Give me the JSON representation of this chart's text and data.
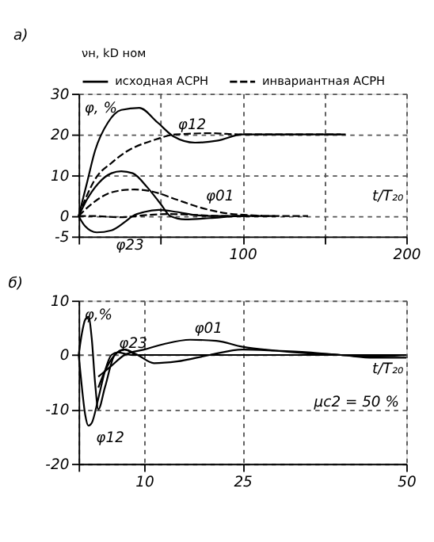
{
  "chart_data": [
    {
      "type": "line",
      "title": "а)",
      "ylabel": "φ, %",
      "xlabel": "t/T₂₀",
      "legend_title": "νн, kD ном",
      "legend": "top",
      "grid": true,
      "xlim": [
        0,
        200
      ],
      "xticks": [
        {
          "value": 0,
          "label": null
        },
        {
          "value": 50,
          "label": null
        },
        100,
        {
          "value": 150,
          "label": null
        },
        200
      ],
      "ylim": [
        -5,
        30
      ],
      "yticks": [
        -5,
        0,
        10,
        20,
        30
      ],
      "series": [
        {
          "name": "исходная АСРН",
          "color": "#000000",
          "line_style": "solid",
          "x": [
            0,
            5,
            10,
            18,
            26,
            37,
            48,
            58,
            71,
            85,
            100,
            120,
            140,
            163
          ],
          "values": [
            0,
            8,
            16,
            23,
            26,
            26.5,
            23,
            19.5,
            18,
            18.5,
            20,
            20,
            20,
            20
          ]
        },
        {
          "name": "инвариантная АСРН",
          "color": "#000000",
          "line_style": "dashed",
          "x": [
            0,
            5,
            10,
            20,
            30,
            45,
            59,
            80,
            100,
            130,
            160
          ],
          "values": [
            0,
            5,
            9,
            13,
            16,
            18.5,
            20,
            20.3,
            20,
            20,
            20
          ]
        },
        {
          "color": "#000000",
          "line_style": "solid",
          "x": [
            0,
            5,
            12,
            20,
            26,
            33,
            42,
            50,
            56,
            65,
            80,
            100,
            120
          ],
          "values": [
            0,
            4,
            8,
            10.5,
            11,
            10.5,
            7,
            3,
            0,
            -0.8,
            -0.5,
            0,
            0
          ]
        },
        {
          "color": "#000000",
          "line_style": "dashed",
          "x": [
            0,
            8,
            18,
            26,
            34,
            45,
            60,
            75,
            90,
            105,
            112
          ],
          "values": [
            0,
            3,
            5.5,
            6.3,
            6.5,
            6,
            4,
            2,
            0.7,
            0.2,
            0.1
          ]
        },
        {
          "color": "#000000",
          "line_style": "solid",
          "x": [
            0,
            4,
            11,
            20,
            28,
            33,
            40,
            49,
            60,
            72,
            85,
            100
          ],
          "values": [
            0,
            -2.5,
            -4,
            -3.5,
            -1.5,
            0,
            1,
            1.5,
            1,
            0.2,
            0,
            0
          ]
        },
        {
          "color": "#000000",
          "line_style": "dashed",
          "x": [
            0,
            10,
            25,
            40,
            55,
            70,
            90,
            110,
            140
          ],
          "values": [
            0,
            0,
            -0.3,
            0.2,
            0.5,
            0.3,
            0,
            0,
            0
          ]
        }
      ],
      "annotations": [
        {
          "text": "φ12",
          "x": 58,
          "y": 19.5
        },
        {
          "text": "φ01",
          "x": 75,
          "y": 2
        },
        {
          "text": "φ23",
          "x": 20,
          "y": -3.5
        }
      ]
    },
    {
      "type": "line",
      "title": "б)",
      "ylabel": "φ,%",
      "xlabel": "t/T₂₀",
      "grid": true,
      "xlim": [
        0,
        50
      ],
      "xticks": [
        {
          "value": 0,
          "label": null
        },
        10,
        25,
        50
      ],
      "ylim": [
        -20,
        10
      ],
      "yticks": [
        -20,
        -10,
        0,
        10
      ],
      "series": [
        {
          "color": "#000000",
          "line_style": "solid",
          "x": [
            0,
            0.5,
            1,
            1.5,
            2,
            3,
            4,
            5,
            6,
            8,
            12,
            20,
            30,
            40,
            50
          ],
          "values": [
            0,
            -6,
            -11,
            -13,
            -12.5,
            -8,
            -3,
            0,
            0.5,
            0,
            0,
            0,
            0,
            0,
            0
          ]
        },
        {
          "color": "#000000",
          "line_style": "solid",
          "x": [
            0,
            0.5,
            1,
            1.5,
            2,
            2.5,
            3,
            4,
            5.5,
            7,
            9,
            12,
            20,
            30,
            50
          ],
          "values": [
            0,
            4,
            6.5,
            7,
            3,
            -5,
            -10,
            -6,
            0,
            1,
            0,
            0,
            0,
            0,
            0
          ]
        },
        {
          "color": "#000000",
          "line_style": "solid",
          "x": [
            3,
            4,
            5,
            7,
            10,
            13,
            17,
            21,
            25,
            30,
            35,
            40,
            45,
            50
          ],
          "values": [
            -4,
            -3,
            -2,
            0,
            1,
            2,
            2.8,
            2.6,
            1.5,
            0.8,
            0.3,
            0,
            -0.5,
            -0.5
          ]
        },
        {
          "color": "#000000",
          "line_style": "solid",
          "x": [
            3,
            4,
            5.5,
            7,
            9,
            11.5,
            15,
            20,
            25,
            30,
            35,
            40,
            45,
            50
          ],
          "values": [
            -6,
            -3,
            0,
            1,
            0,
            -1.5,
            -1.2,
            0,
            1,
            0.8,
            0.5,
            0,
            -0.3,
            0
          ]
        }
      ],
      "annotations": [
        {
          "text": "φ23",
          "x": 5.5,
          "y": 0
        },
        {
          "text": "φ01",
          "x": 17,
          "y": 2.8
        },
        {
          "text": "φ12",
          "x": 2,
          "y": -12.5
        },
        "μс2 = 50 %"
      ]
    }
  ]
}
